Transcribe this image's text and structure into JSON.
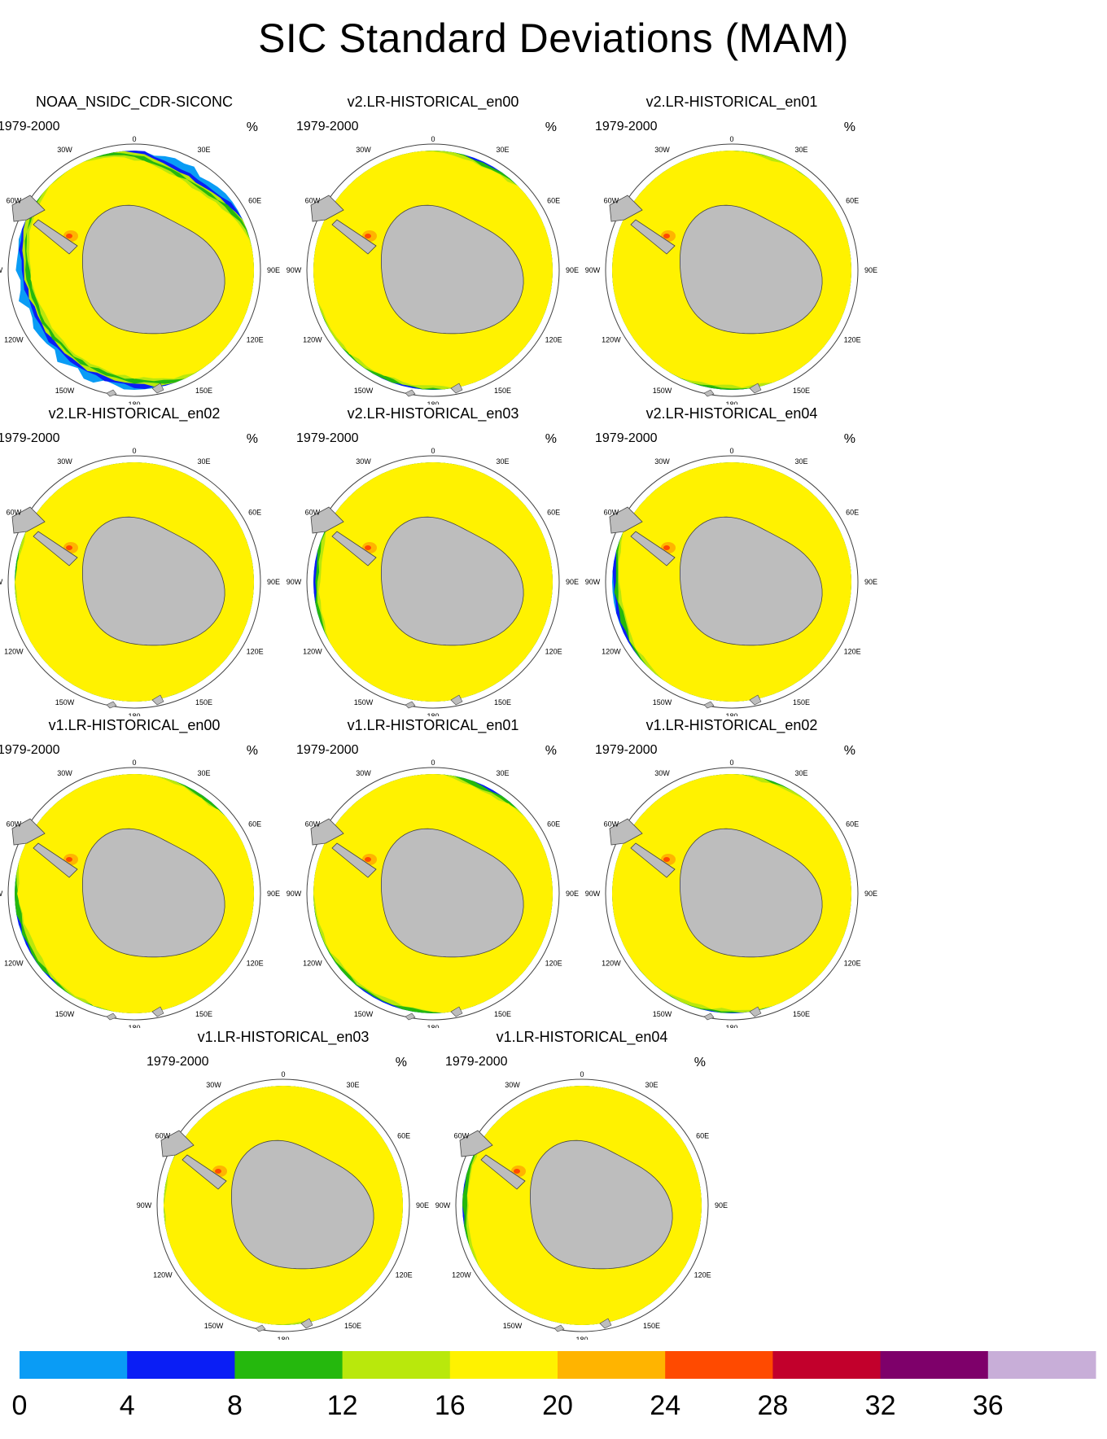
{
  "title": "SIC Standard Deviations (MAM)",
  "period": "1979-2000",
  "unit": "%",
  "lon_labels": [
    "0",
    "30E",
    "60E",
    "90E",
    "120E",
    "150E",
    "180",
    "150W",
    "120W",
    "90W",
    "60W",
    "30W"
  ],
  "panels": [
    {
      "title": "NOAA_NSIDC_CDR-SICONC"
    },
    {
      "title": "v2.LR-HISTORICAL_en00"
    },
    {
      "title": "v2.LR-HISTORICAL_en01"
    },
    {
      "title": "v2.LR-HISTORICAL_en02"
    },
    {
      "title": "v2.LR-HISTORICAL_en03"
    },
    {
      "title": "v2.LR-HISTORICAL_en04"
    },
    {
      "title": "v1.LR-HISTORICAL_en00"
    },
    {
      "title": "v1.LR-HISTORICAL_en01"
    },
    {
      "title": "v1.LR-HISTORICAL_en02"
    },
    {
      "title": "v1.LR-HISTORICAL_en03"
    },
    {
      "title": "v1.LR-HISTORICAL_en04"
    }
  ],
  "colorbar": {
    "levels": [
      "0",
      "4",
      "8",
      "12",
      "16",
      "20",
      "24",
      "28",
      "32",
      "36"
    ],
    "colors": [
      "#0a9cf5",
      "#0a1ef5",
      "#25b80d",
      "#b9e80c",
      "#fff200",
      "#ffb400",
      "#ff4a00",
      "#c2002c",
      "#7e006a",
      "#c8aed8"
    ]
  },
  "colors": {
    "land": "#bdbdbd",
    "ocean": "#ffffff",
    "outline": "#444444"
  }
}
